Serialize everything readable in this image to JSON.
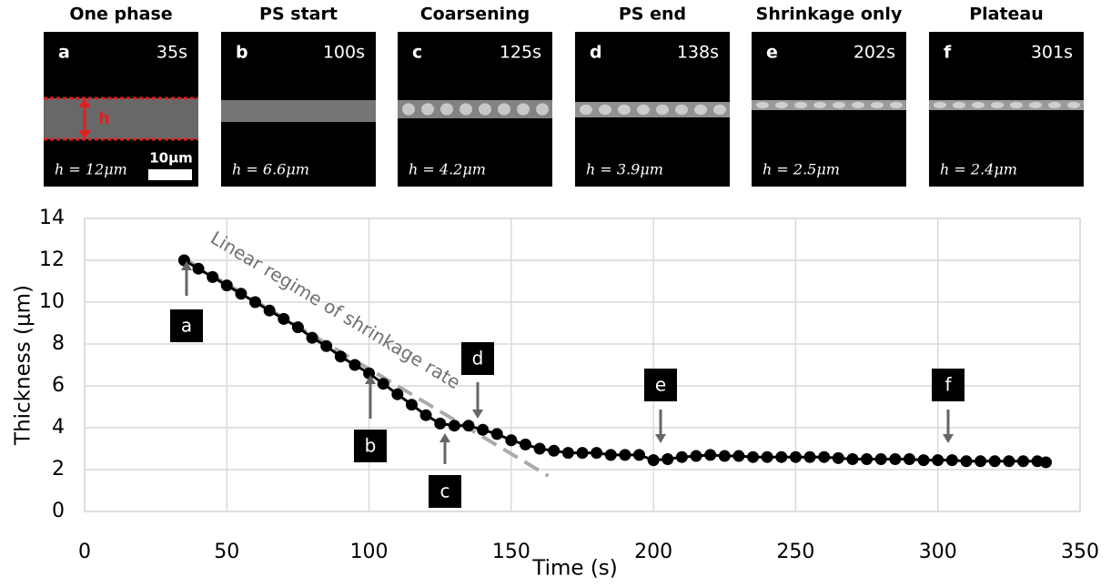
{
  "panels": [
    {
      "title": "One phase",
      "letter": "a",
      "time": "35s",
      "thickness": "h = 12μm"
    },
    {
      "title": "PS start",
      "letter": "b",
      "time": "100s",
      "thickness": "h = 6.6μm"
    },
    {
      "title": "Coarsening",
      "letter": "c",
      "time": "125s",
      "thickness": "h = 4.2μm"
    },
    {
      "title": "PS end",
      "letter": "d",
      "time": "138s",
      "thickness": "h = 3.9μm"
    },
    {
      "title": "Shrinkage only",
      "letter": "e",
      "time": "202s",
      "thickness": "h = 2.5μm"
    },
    {
      "title": "Plateau",
      "letter": "f",
      "time": "301s",
      "thickness": "h = 2.4μm"
    }
  ],
  "scale_bar": "10μm",
  "h_marker": "h",
  "chart_data": {
    "type": "line",
    "x_label": "Time (s)",
    "y_label": "Thickness (μm)",
    "xlim": [
      0,
      350
    ],
    "xticks": [
      0,
      50,
      100,
      150,
      200,
      250,
      300,
      350
    ],
    "ylim": [
      0,
      14
    ],
    "yticks": [
      0,
      2,
      4,
      6,
      8,
      10,
      12,
      14
    ],
    "grid": true,
    "x": [
      35,
      40,
      45,
      50,
      55,
      60,
      65,
      70,
      75,
      80,
      85,
      90,
      95,
      100,
      105,
      110,
      115,
      120,
      125,
      130,
      135,
      140,
      145,
      150,
      155,
      160,
      165,
      170,
      175,
      180,
      185,
      190,
      195,
      200,
      205,
      210,
      215,
      220,
      225,
      230,
      235,
      240,
      245,
      250,
      255,
      260,
      265,
      270,
      275,
      280,
      285,
      290,
      295,
      300,
      305,
      310,
      315,
      320,
      325,
      330,
      335,
      338
    ],
    "series": [
      {
        "color": "#000000",
        "values": [
          12.0,
          11.6,
          11.2,
          10.8,
          10.4,
          10.0,
          9.6,
          9.2,
          8.8,
          8.3,
          7.9,
          7.4,
          7.0,
          6.6,
          6.1,
          5.6,
          5.1,
          4.6,
          4.2,
          4.1,
          4.1,
          3.9,
          3.7,
          3.4,
          3.2,
          3.0,
          2.9,
          2.8,
          2.8,
          2.8,
          2.7,
          2.7,
          2.7,
          2.45,
          2.5,
          2.6,
          2.65,
          2.7,
          2.65,
          2.65,
          2.6,
          2.6,
          2.6,
          2.6,
          2.6,
          2.6,
          2.55,
          2.5,
          2.5,
          2.5,
          2.5,
          2.5,
          2.45,
          2.45,
          2.45,
          2.4,
          2.4,
          2.4,
          2.4,
          2.4,
          2.4,
          2.35
        ]
      }
    ],
    "fit_line": {
      "label": "Linear regime of shrinkage rate",
      "x": [
        36,
        163
      ],
      "values": [
        12,
        1.7
      ],
      "color": "#aaaaaa"
    },
    "annotations": [
      "a",
      "b",
      "c",
      "d",
      "e",
      "f"
    ]
  }
}
